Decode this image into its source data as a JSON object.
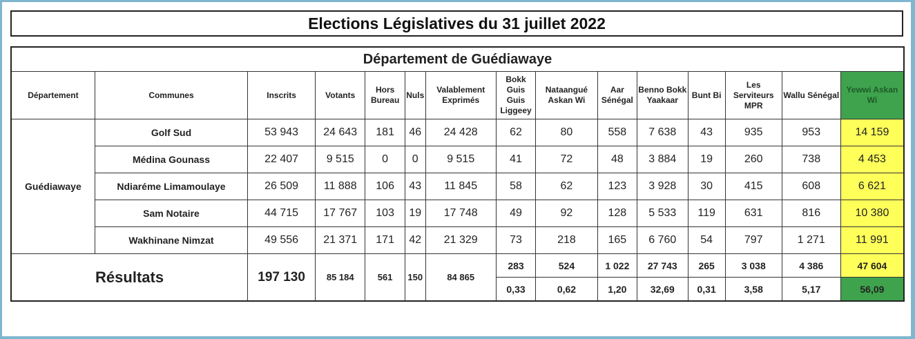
{
  "title": "Elections Législatives du 31 juillet 2022",
  "department_title": "Département de Guédiawaye",
  "columns": {
    "departement": "Département",
    "communes": "Communes",
    "inscrits": "Inscrits",
    "votants": "Votants",
    "hors_bureau": "Hors Bureau",
    "nuls": "Nuls",
    "valablement_exprimes": "Valablement Exprimés",
    "bokk_guis_guis": "Bokk Guis Guis Liggeey",
    "nataangue": "Nataangué Askan Wi",
    "aar_senegal": "Aar Sénégal",
    "benno": "Benno Bokk Yaakaar",
    "bunt_bi": "Bunt Bi",
    "serviteurs": "Les Serviteurs MPR",
    "wallu": "Wallu Sénégal",
    "yewwi": "Yewwi Askan Wi"
  },
  "department_name": "Guédiawaye",
  "rows": [
    {
      "commune": "Golf Sud",
      "inscrits": "53 943",
      "votants": "24 643",
      "hors_bureau": "181",
      "nuls": "46",
      "exprimes": "24 428",
      "bokk": "62",
      "nataangue": "80",
      "aar": "558",
      "benno": "7 638",
      "bunt": "43",
      "serviteurs": "935",
      "wallu": "953",
      "yewwi": "14 159"
    },
    {
      "commune": "Médina Gounass",
      "inscrits": "22 407",
      "votants": "9 515",
      "hors_bureau": "0",
      "nuls": "0",
      "exprimes": "9 515",
      "bokk": "41",
      "nataangue": "72",
      "aar": "48",
      "benno": "3 884",
      "bunt": "19",
      "serviteurs": "260",
      "wallu": "738",
      "yewwi": "4 453"
    },
    {
      "commune": "Ndiaréme Limamoulaye",
      "inscrits": "26 509",
      "votants": "11 888",
      "hors_bureau": "106",
      "nuls": "43",
      "exprimes": "11 845",
      "bokk": "58",
      "nataangue": "62",
      "aar": "123",
      "benno": "3 928",
      "bunt": "30",
      "serviteurs": "415",
      "wallu": "608",
      "yewwi": "6 621"
    },
    {
      "commune": "Sam Notaire",
      "inscrits": "44 715",
      "votants": "17 767",
      "hors_bureau": "103",
      "nuls": "19",
      "exprimes": "17 748",
      "bokk": "49",
      "nataangue": "92",
      "aar": "128",
      "benno": "5 533",
      "bunt": "119",
      "serviteurs": "631",
      "wallu": "816",
      "yewwi": "10 380"
    },
    {
      "commune": "Wakhinane Nimzat",
      "inscrits": "49 556",
      "votants": "21 371",
      "hors_bureau": "171",
      "nuls": "42",
      "exprimes": "21 329",
      "bokk": "73",
      "nataangue": "218",
      "aar": "165",
      "benno": "6 760",
      "bunt": "54",
      "serviteurs": "797",
      "wallu": "1 271",
      "yewwi": "11 991"
    }
  ],
  "results": {
    "label": "Résultats",
    "inscrits": "197 130",
    "votants": "85 184",
    "hors_bureau": "561",
    "nuls": "150",
    "exprimes": "84 865",
    "votes": {
      "bokk": "283",
      "nataangue": "524",
      "aar": "1 022",
      "benno": "27 743",
      "bunt": "265",
      "serviteurs": "3 038",
      "wallu": "4 386",
      "yewwi": "47 604"
    },
    "percents": {
      "bokk": "0,33",
      "nataangue": "0,62",
      "aar": "1,20",
      "benno": "32,69",
      "bunt": "0,31",
      "serviteurs": "3,58",
      "wallu": "5,17",
      "yewwi": "56,09"
    }
  },
  "colors": {
    "highlight_yellow": "#ffff5a",
    "highlight_green": "#3fa34d"
  }
}
